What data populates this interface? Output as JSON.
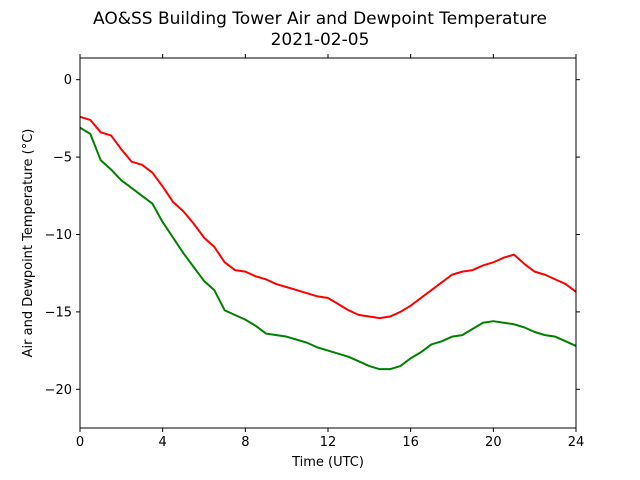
{
  "chart_data": {
    "type": "line",
    "title": "AO&SS Building Tower Air and Dewpoint Temperature",
    "subtitle": "2021-02-05",
    "xlabel": "Time (UTC)",
    "ylabel": "Air and Dewpoint Temperature (°C)",
    "xlim": [
      0,
      24
    ],
    "ylim": [
      -22.5,
      1.4
    ],
    "xticks": [
      0,
      4,
      8,
      12,
      16,
      20,
      24
    ],
    "yticks": [
      0,
      -5,
      -10,
      -15,
      -20
    ],
    "xtick_labels": [
      "0",
      "4",
      "8",
      "12",
      "16",
      "20",
      "24"
    ],
    "ytick_labels": [
      "0",
      "−5",
      "−10",
      "−15",
      "−20"
    ],
    "grid": false,
    "legend": "none",
    "series": [
      {
        "color": "#ff0000",
        "x": [
          0,
          0.5,
          1,
          1.5,
          2,
          2.5,
          3,
          3.5,
          4,
          4.5,
          5,
          5.5,
          6,
          6.5,
          7,
          7.5,
          8,
          8.5,
          9,
          9.5,
          10,
          10.5,
          11,
          11.5,
          12,
          12.5,
          13,
          13.5,
          14,
          14.5,
          15,
          15.5,
          16,
          16.5,
          17,
          17.5,
          18,
          18.5,
          19,
          19.5,
          20,
          20.5,
          21,
          21.5,
          22,
          22.5,
          23,
          23.5,
          24
        ],
        "y": [
          -2.4,
          -2.6,
          -3.4,
          -3.6,
          -4.5,
          -5.3,
          -5.5,
          -6.0,
          -6.9,
          -7.9,
          -8.5,
          -9.3,
          -10.2,
          -10.8,
          -11.8,
          -12.3,
          -12.4,
          -12.7,
          -12.9,
          -13.2,
          -13.4,
          -13.6,
          -13.8,
          -14.0,
          -14.1,
          -14.5,
          -14.9,
          -15.2,
          -15.3,
          -15.4,
          -15.3,
          -15.0,
          -14.6,
          -14.1,
          -13.6,
          -13.1,
          -12.6,
          -12.4,
          -12.3,
          -12.0,
          -11.8,
          -11.5,
          -11.3,
          -11.9,
          -12.4,
          -12.6,
          -12.9,
          -13.2,
          -13.7
        ]
      },
      {
        "color": "#008000",
        "x": [
          0,
          0.5,
          1,
          1.5,
          2,
          2.5,
          3,
          3.5,
          4,
          4.5,
          5,
          5.5,
          6,
          6.5,
          7,
          7.5,
          8,
          8.5,
          9,
          9.5,
          10,
          10.5,
          11,
          11.5,
          12,
          12.5,
          13,
          13.5,
          14,
          14.5,
          15,
          15.5,
          16,
          16.5,
          17,
          17.5,
          18,
          18.5,
          19,
          19.5,
          20,
          20.5,
          21,
          21.5,
          22,
          22.5,
          23,
          23.5,
          24
        ],
        "y": [
          -3.1,
          -3.5,
          -5.2,
          -5.8,
          -6.5,
          -7.0,
          -7.5,
          -8.0,
          -9.2,
          -10.2,
          -11.2,
          -12.1,
          -13.0,
          -13.6,
          -14.9,
          -15.2,
          -15.5,
          -15.9,
          -16.4,
          -16.5,
          -16.6,
          -16.8,
          -17.0,
          -17.3,
          -17.5,
          -17.7,
          -17.9,
          -18.2,
          -18.5,
          -18.7,
          -18.7,
          -18.5,
          -18.0,
          -17.6,
          -17.1,
          -16.9,
          -16.6,
          -16.5,
          -16.1,
          -15.7,
          -15.6,
          -15.7,
          -15.8,
          -16.0,
          -16.3,
          -16.5,
          -16.6,
          -16.9,
          -17.2
        ]
      }
    ]
  }
}
